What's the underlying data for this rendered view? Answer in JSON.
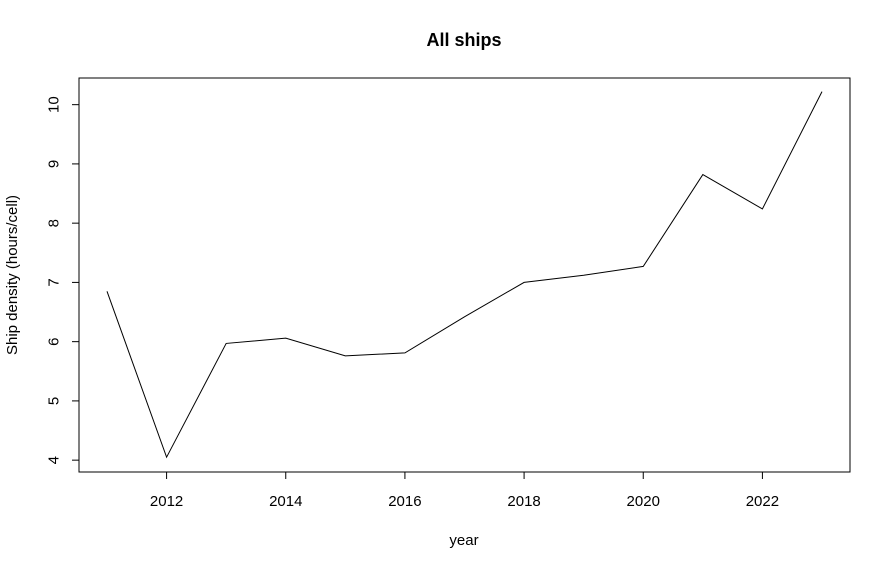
{
  "chart_data": {
    "type": "line",
    "title": "All ships",
    "xlabel": "year",
    "ylabel": "Ship density (hours/cell)",
    "x": [
      2011,
      2012,
      2013,
      2014,
      2015,
      2016,
      2017,
      2018,
      2019,
      2020,
      2021,
      2022,
      2023
    ],
    "y": [
      6.85,
      4.05,
      5.97,
      6.06,
      5.76,
      5.81,
      6.42,
      7.0,
      7.12,
      7.27,
      8.82,
      8.24,
      10.22
    ],
    "xlim": [
      2010.53,
      2023.47
    ],
    "ylim": [
      3.8,
      10.45
    ],
    "xticks": [
      2012,
      2014,
      2016,
      2018,
      2020,
      2022
    ],
    "yticks": [
      4,
      5,
      6,
      7,
      8,
      9,
      10
    ],
    "line_color": "#000000",
    "grid": false
  }
}
